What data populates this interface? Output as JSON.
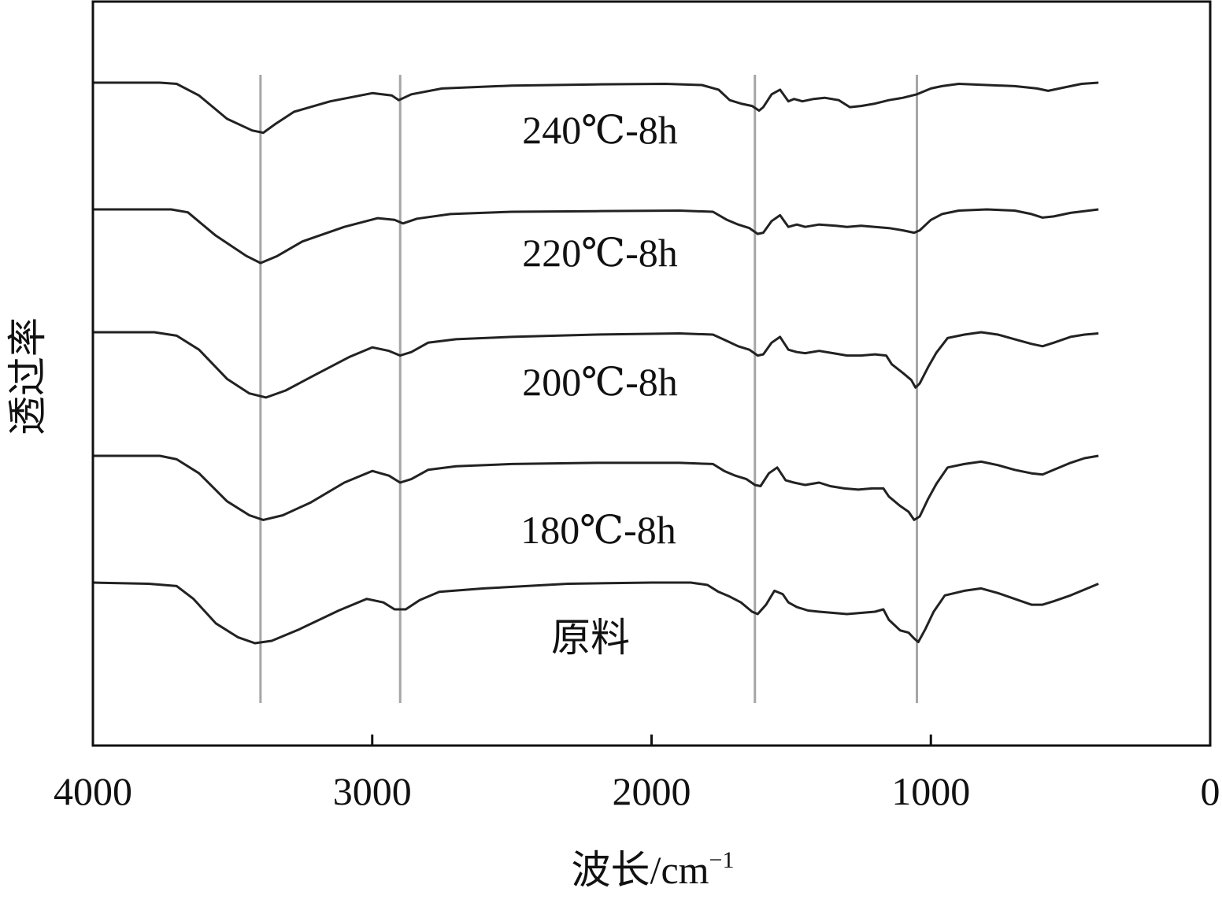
{
  "chart_data": {
    "type": "line",
    "title": "",
    "xlabel": "波长/cm",
    "xlabel_sup": "−1",
    "ylabel": "透过率",
    "xlim": [
      4000,
      0
    ],
    "x_reversed": true,
    "xticks": [
      "4000",
      "3000",
      "2000",
      "1000",
      "0"
    ],
    "y_ticks_shown": false,
    "grid": false,
    "reference_lines_x": [
      3400,
      2900,
      1630,
      1050
    ],
    "colors": {
      "curve": "#222222",
      "reference_line": "#a6a6a6",
      "axis": "#111111"
    },
    "series": [
      {
        "name": "240℃-8h",
        "points": [
          [
            4000,
            0.0
          ],
          [
            3760,
            0.0
          ],
          [
            3700,
            -0.02
          ],
          [
            3620,
            -0.22
          ],
          [
            3520,
            -0.62
          ],
          [
            3430,
            -0.82
          ],
          [
            3390,
            -0.86
          ],
          [
            3350,
            -0.72
          ],
          [
            3280,
            -0.5
          ],
          [
            3150,
            -0.32
          ],
          [
            3000,
            -0.18
          ],
          [
            2930,
            -0.22
          ],
          [
            2905,
            -0.3
          ],
          [
            2860,
            -0.2
          ],
          [
            2750,
            -0.1
          ],
          [
            2500,
            -0.05
          ],
          [
            2200,
            -0.03
          ],
          [
            1950,
            -0.02
          ],
          [
            1820,
            -0.04
          ],
          [
            1760,
            -0.12
          ],
          [
            1720,
            -0.3
          ],
          [
            1680,
            -0.36
          ],
          [
            1640,
            -0.4
          ],
          [
            1615,
            -0.48
          ],
          [
            1600,
            -0.42
          ],
          [
            1570,
            -0.2
          ],
          [
            1540,
            -0.12
          ],
          [
            1510,
            -0.32
          ],
          [
            1490,
            -0.28
          ],
          [
            1460,
            -0.32
          ],
          [
            1420,
            -0.28
          ],
          [
            1380,
            -0.26
          ],
          [
            1330,
            -0.3
          ],
          [
            1290,
            -0.42
          ],
          [
            1250,
            -0.4
          ],
          [
            1200,
            -0.36
          ],
          [
            1150,
            -0.3
          ],
          [
            1100,
            -0.26
          ],
          [
            1050,
            -0.2
          ],
          [
            1000,
            -0.1
          ],
          [
            960,
            -0.06
          ],
          [
            900,
            -0.02
          ],
          [
            800,
            -0.04
          ],
          [
            700,
            -0.06
          ],
          [
            620,
            -0.1
          ],
          [
            580,
            -0.14
          ],
          [
            520,
            -0.08
          ],
          [
            460,
            -0.02
          ],
          [
            400,
            0.0
          ]
        ]
      },
      {
        "name": "220℃-8h",
        "points": [
          [
            4000,
            0.0
          ],
          [
            3720,
            0.0
          ],
          [
            3660,
            -0.05
          ],
          [
            3560,
            -0.45
          ],
          [
            3450,
            -0.8
          ],
          [
            3400,
            -0.92
          ],
          [
            3340,
            -0.8
          ],
          [
            3250,
            -0.55
          ],
          [
            3100,
            -0.3
          ],
          [
            2980,
            -0.15
          ],
          [
            2920,
            -0.18
          ],
          [
            2890,
            -0.24
          ],
          [
            2840,
            -0.16
          ],
          [
            2720,
            -0.08
          ],
          [
            2500,
            -0.04
          ],
          [
            2200,
            -0.03
          ],
          [
            1900,
            -0.02
          ],
          [
            1780,
            -0.04
          ],
          [
            1730,
            -0.18
          ],
          [
            1690,
            -0.26
          ],
          [
            1650,
            -0.32
          ],
          [
            1620,
            -0.42
          ],
          [
            1600,
            -0.4
          ],
          [
            1570,
            -0.2
          ],
          [
            1540,
            -0.1
          ],
          [
            1510,
            -0.3
          ],
          [
            1480,
            -0.26
          ],
          [
            1450,
            -0.3
          ],
          [
            1400,
            -0.26
          ],
          [
            1340,
            -0.28
          ],
          [
            1300,
            -0.3
          ],
          [
            1250,
            -0.28
          ],
          [
            1200,
            -0.3
          ],
          [
            1150,
            -0.32
          ],
          [
            1100,
            -0.36
          ],
          [
            1060,
            -0.4
          ],
          [
            1040,
            -0.36
          ],
          [
            1000,
            -0.18
          ],
          [
            960,
            -0.08
          ],
          [
            900,
            -0.02
          ],
          [
            800,
            0.0
          ],
          [
            700,
            -0.02
          ],
          [
            640,
            -0.08
          ],
          [
            600,
            -0.14
          ],
          [
            560,
            -0.12
          ],
          [
            500,
            -0.06
          ],
          [
            400,
            0.0
          ]
        ]
      },
      {
        "name": "200℃-8h",
        "points": [
          [
            4000,
            0.0
          ],
          [
            3780,
            0.0
          ],
          [
            3700,
            -0.06
          ],
          [
            3620,
            -0.3
          ],
          [
            3520,
            -0.8
          ],
          [
            3440,
            -1.05
          ],
          [
            3380,
            -1.12
          ],
          [
            3310,
            -1.0
          ],
          [
            3200,
            -0.72
          ],
          [
            3080,
            -0.42
          ],
          [
            3000,
            -0.26
          ],
          [
            2940,
            -0.32
          ],
          [
            2900,
            -0.4
          ],
          [
            2860,
            -0.34
          ],
          [
            2800,
            -0.18
          ],
          [
            2700,
            -0.12
          ],
          [
            2500,
            -0.08
          ],
          [
            2200,
            -0.04
          ],
          [
            1900,
            -0.02
          ],
          [
            1780,
            -0.04
          ],
          [
            1730,
            -0.15
          ],
          [
            1690,
            -0.24
          ],
          [
            1650,
            -0.3
          ],
          [
            1620,
            -0.4
          ],
          [
            1600,
            -0.38
          ],
          [
            1570,
            -0.18
          ],
          [
            1540,
            -0.08
          ],
          [
            1510,
            -0.3
          ],
          [
            1480,
            -0.34
          ],
          [
            1450,
            -0.36
          ],
          [
            1400,
            -0.32
          ],
          [
            1350,
            -0.36
          ],
          [
            1300,
            -0.4
          ],
          [
            1250,
            -0.4
          ],
          [
            1200,
            -0.38
          ],
          [
            1160,
            -0.4
          ],
          [
            1140,
            -0.55
          ],
          [
            1100,
            -0.7
          ],
          [
            1070,
            -0.82
          ],
          [
            1055,
            -0.95
          ],
          [
            1040,
            -0.88
          ],
          [
            1010,
            -0.6
          ],
          [
            980,
            -0.35
          ],
          [
            940,
            -0.1
          ],
          [
            880,
            -0.04
          ],
          [
            820,
            0.0
          ],
          [
            760,
            -0.04
          ],
          [
            700,
            -0.12
          ],
          [
            640,
            -0.2
          ],
          [
            600,
            -0.24
          ],
          [
            560,
            -0.18
          ],
          [
            500,
            -0.08
          ],
          [
            450,
            -0.04
          ],
          [
            400,
            -0.02
          ]
        ]
      },
      {
        "name": "180℃-8h",
        "points": [
          [
            4000,
            0.0
          ],
          [
            3760,
            0.0
          ],
          [
            3700,
            -0.06
          ],
          [
            3620,
            -0.3
          ],
          [
            3520,
            -0.78
          ],
          [
            3440,
            -1.02
          ],
          [
            3390,
            -1.1
          ],
          [
            3320,
            -1.02
          ],
          [
            3220,
            -0.8
          ],
          [
            3100,
            -0.46
          ],
          [
            3000,
            -0.26
          ],
          [
            2940,
            -0.34
          ],
          [
            2900,
            -0.46
          ],
          [
            2860,
            -0.4
          ],
          [
            2800,
            -0.24
          ],
          [
            2700,
            -0.18
          ],
          [
            2500,
            -0.14
          ],
          [
            2200,
            -0.12
          ],
          [
            1900,
            -0.12
          ],
          [
            1780,
            -0.14
          ],
          [
            1740,
            -0.26
          ],
          [
            1700,
            -0.34
          ],
          [
            1660,
            -0.4
          ],
          [
            1630,
            -0.5
          ],
          [
            1610,
            -0.52
          ],
          [
            1580,
            -0.3
          ],
          [
            1550,
            -0.2
          ],
          [
            1520,
            -0.42
          ],
          [
            1490,
            -0.46
          ],
          [
            1450,
            -0.5
          ],
          [
            1400,
            -0.46
          ],
          [
            1360,
            -0.52
          ],
          [
            1310,
            -0.56
          ],
          [
            1260,
            -0.58
          ],
          [
            1210,
            -0.56
          ],
          [
            1170,
            -0.56
          ],
          [
            1150,
            -0.7
          ],
          [
            1110,
            -0.86
          ],
          [
            1080,
            -0.96
          ],
          [
            1060,
            -1.1
          ],
          [
            1040,
            -1.04
          ],
          [
            1010,
            -0.74
          ],
          [
            980,
            -0.48
          ],
          [
            940,
            -0.2
          ],
          [
            880,
            -0.14
          ],
          [
            820,
            -0.1
          ],
          [
            760,
            -0.16
          ],
          [
            700,
            -0.24
          ],
          [
            640,
            -0.3
          ],
          [
            600,
            -0.32
          ],
          [
            560,
            -0.24
          ],
          [
            500,
            -0.12
          ],
          [
            450,
            -0.04
          ],
          [
            400,
            0.0
          ]
        ]
      },
      {
        "name": "原料",
        "points": [
          [
            4000,
            0.0
          ],
          [
            3800,
            -0.02
          ],
          [
            3700,
            -0.06
          ],
          [
            3640,
            -0.28
          ],
          [
            3560,
            -0.7
          ],
          [
            3480,
            -0.94
          ],
          [
            3420,
            -1.04
          ],
          [
            3360,
            -1.0
          ],
          [
            3260,
            -0.8
          ],
          [
            3120,
            -0.48
          ],
          [
            3020,
            -0.28
          ],
          [
            2960,
            -0.34
          ],
          [
            2920,
            -0.46
          ],
          [
            2880,
            -0.46
          ],
          [
            2830,
            -0.3
          ],
          [
            2760,
            -0.16
          ],
          [
            2600,
            -0.1
          ],
          [
            2300,
            -0.02
          ],
          [
            2000,
            0.0
          ],
          [
            1860,
            0.0
          ],
          [
            1800,
            -0.04
          ],
          [
            1760,
            -0.16
          ],
          [
            1720,
            -0.24
          ],
          [
            1680,
            -0.34
          ],
          [
            1640,
            -0.5
          ],
          [
            1620,
            -0.54
          ],
          [
            1590,
            -0.38
          ],
          [
            1560,
            -0.14
          ],
          [
            1530,
            -0.2
          ],
          [
            1510,
            -0.34
          ],
          [
            1480,
            -0.42
          ],
          [
            1440,
            -0.48
          ],
          [
            1400,
            -0.5
          ],
          [
            1350,
            -0.52
          ],
          [
            1300,
            -0.54
          ],
          [
            1250,
            -0.52
          ],
          [
            1200,
            -0.5
          ],
          [
            1170,
            -0.46
          ],
          [
            1150,
            -0.64
          ],
          [
            1110,
            -0.82
          ],
          [
            1080,
            -0.86
          ],
          [
            1060,
            -0.96
          ],
          [
            1045,
            -1.02
          ],
          [
            1020,
            -0.8
          ],
          [
            990,
            -0.5
          ],
          [
            950,
            -0.22
          ],
          [
            880,
            -0.14
          ],
          [
            820,
            -0.1
          ],
          [
            760,
            -0.18
          ],
          [
            700,
            -0.28
          ],
          [
            640,
            -0.38
          ],
          [
            600,
            -0.38
          ],
          [
            560,
            -0.32
          ],
          [
            500,
            -0.22
          ],
          [
            450,
            -0.12
          ],
          [
            400,
            -0.02
          ]
        ]
      }
    ]
  }
}
